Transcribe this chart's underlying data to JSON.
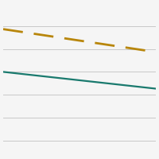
{
  "line1": {
    "x": [
      0,
      1
    ],
    "y": [
      0.83,
      0.68
    ],
    "color": "#b8860b",
    "linewidth": 2.0,
    "dashes": [
      9,
      5
    ]
  },
  "line2": {
    "x": [
      0,
      1
    ],
    "y": [
      0.55,
      0.44
    ],
    "color": "#1a7a6e",
    "linewidth": 1.6
  },
  "ylim": [
    0.0,
    1.0
  ],
  "xlim": [
    0.0,
    1.0
  ],
  "grid_color": "#c8c8c8",
  "background_color": "#f5f5f5",
  "grid_y_positions": [
    0.1,
    0.25,
    0.4,
    0.55,
    0.7,
    0.85
  ]
}
